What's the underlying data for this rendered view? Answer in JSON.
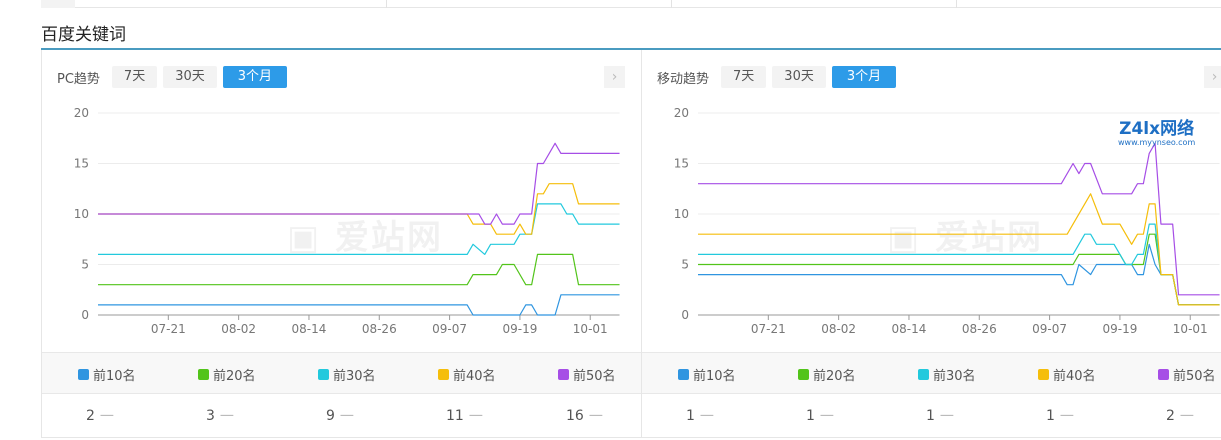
{
  "section_title": "百度关键词",
  "colors": {
    "accent": "#2d9be8",
    "rule": "#4a9bc0",
    "top10": "#2f95e0",
    "top20": "#52c41a",
    "top30": "#22c9dd",
    "top40": "#f5be0b",
    "top50": "#a64ee6"
  },
  "legend": [
    "前10名",
    "前20名",
    "前30名",
    "前40名",
    "前50名"
  ],
  "watermark": "爱站网",
  "overlay_logo": {
    "name": "Z4lx网络",
    "url": "www.myynseo.com"
  },
  "panels": [
    {
      "title": "PC趋势",
      "buttons": [
        "7天",
        "30天",
        "3个月"
      ],
      "active": 2,
      "next_icon": "chevron-right-icon",
      "values": [
        "2",
        "3",
        "9",
        "11",
        "16"
      ],
      "chart_data": {
        "type": "line",
        "x_ticks": [
          "07-21",
          "08-02",
          "08-14",
          "08-26",
          "09-07",
          "09-19",
          "10-01"
        ],
        "x_range": [
          "07-09",
          "10-06"
        ],
        "y_ticks": [
          0,
          5,
          10,
          15,
          20
        ],
        "ylim": [
          0,
          20
        ],
        "grid": true,
        "series": [
          {
            "name": "前10名",
            "points": [
              [
                "07-09",
                1
              ],
              [
                "09-10",
                1
              ],
              [
                "09-11",
                0
              ],
              [
                "09-19",
                0
              ],
              [
                "09-20",
                1
              ],
              [
                "09-21",
                1
              ],
              [
                "09-22",
                0
              ],
              [
                "09-25",
                0
              ],
              [
                "09-26",
                2
              ],
              [
                "10-06",
                2
              ]
            ]
          },
          {
            "name": "前20名",
            "points": [
              [
                "07-09",
                3
              ],
              [
                "09-10",
                3
              ],
              [
                "09-11",
                4
              ],
              [
                "09-15",
                4
              ],
              [
                "09-16",
                5
              ],
              [
                "09-18",
                5
              ],
              [
                "09-20",
                3
              ],
              [
                "09-21",
                3
              ],
              [
                "09-22",
                6
              ],
              [
                "09-28",
                6
              ],
              [
                "09-29",
                3
              ],
              [
                "10-06",
                3
              ]
            ]
          },
          {
            "name": "前30名",
            "points": [
              [
                "07-09",
                6
              ],
              [
                "09-10",
                6
              ],
              [
                "09-11",
                7
              ],
              [
                "09-13",
                6
              ],
              [
                "09-14",
                7
              ],
              [
                "09-18",
                7
              ],
              [
                "09-19",
                8
              ],
              [
                "09-21",
                8
              ],
              [
                "09-22",
                11
              ],
              [
                "09-26",
                11
              ],
              [
                "09-27",
                10
              ],
              [
                "09-28",
                10
              ],
              [
                "09-29",
                9
              ],
              [
                "10-06",
                9
              ]
            ]
          },
          {
            "name": "前40名",
            "points": [
              [
                "07-09",
                10
              ],
              [
                "09-10",
                10
              ],
              [
                "09-11",
                9
              ],
              [
                "09-14",
                9
              ],
              [
                "09-15",
                8
              ],
              [
                "09-18",
                8
              ],
              [
                "09-19",
                9
              ],
              [
                "09-20",
                8
              ],
              [
                "09-21",
                8
              ],
              [
                "09-22",
                12
              ],
              [
                "09-23",
                12
              ],
              [
                "09-24",
                13
              ],
              [
                "09-28",
                13
              ],
              [
                "09-29",
                11
              ],
              [
                "10-06",
                11
              ]
            ]
          },
          {
            "name": "前50名",
            "points": [
              [
                "07-09",
                10
              ],
              [
                "09-12",
                10
              ],
              [
                "09-13",
                9
              ],
              [
                "09-14",
                9
              ],
              [
                "09-15",
                10
              ],
              [
                "09-16",
                9
              ],
              [
                "09-18",
                9
              ],
              [
                "09-19",
                10
              ],
              [
                "09-21",
                10
              ],
              [
                "09-22",
                15
              ],
              [
                "09-23",
                15
              ],
              [
                "09-24",
                16
              ],
              [
                "09-25",
                17
              ],
              [
                "09-26",
                16
              ],
              [
                "10-06",
                16
              ]
            ]
          }
        ]
      }
    },
    {
      "title": "移动趋势",
      "buttons": [
        "7天",
        "30天",
        "3个月"
      ],
      "active": 2,
      "next_icon": "chevron-right-icon",
      "values": [
        "1",
        "1",
        "1",
        "1",
        "2"
      ],
      "chart_data": {
        "type": "line",
        "x_ticks": [
          "07-21",
          "08-02",
          "08-14",
          "08-26",
          "09-07",
          "09-19",
          "10-01"
        ],
        "x_range": [
          "07-09",
          "10-06"
        ],
        "y_ticks": [
          0,
          5,
          10,
          15,
          20
        ],
        "ylim": [
          0,
          20
        ],
        "grid": true,
        "series": [
          {
            "name": "前10名",
            "points": [
              [
                "07-09",
                4
              ],
              [
                "09-09",
                4
              ],
              [
                "09-10",
                3
              ],
              [
                "09-11",
                3
              ],
              [
                "09-12",
                5
              ],
              [
                "09-14",
                4
              ],
              [
                "09-15",
                5
              ],
              [
                "09-21",
                5
              ],
              [
                "09-22",
                4
              ],
              [
                "09-23",
                4
              ],
              [
                "09-24",
                7
              ],
              [
                "09-25",
                5
              ],
              [
                "09-26",
                4
              ],
              [
                "09-28",
                4
              ],
              [
                "09-29",
                1
              ],
              [
                "10-06",
                1
              ]
            ]
          },
          {
            "name": "前20名",
            "points": [
              [
                "07-09",
                5
              ],
              [
                "09-11",
                5
              ],
              [
                "09-12",
                6
              ],
              [
                "09-19",
                6
              ],
              [
                "09-20",
                5
              ],
              [
                "09-23",
                5
              ],
              [
                "09-24",
                8
              ],
              [
                "09-25",
                8
              ],
              [
                "09-26",
                4
              ],
              [
                "09-28",
                4
              ],
              [
                "09-29",
                1
              ],
              [
                "10-06",
                1
              ]
            ]
          },
          {
            "name": "前30名",
            "points": [
              [
                "07-09",
                6
              ],
              [
                "09-11",
                6
              ],
              [
                "09-13",
                8
              ],
              [
                "09-14",
                8
              ],
              [
                "09-15",
                7
              ],
              [
                "09-18",
                7
              ],
              [
                "09-20",
                5
              ],
              [
                "09-21",
                5
              ],
              [
                "09-22",
                6
              ],
              [
                "09-23",
                6
              ],
              [
                "09-24",
                9
              ],
              [
                "09-25",
                9
              ],
              [
                "09-26",
                4
              ],
              [
                "09-28",
                4
              ],
              [
                "09-29",
                1
              ],
              [
                "10-06",
                1
              ]
            ]
          },
          {
            "name": "前40名",
            "points": [
              [
                "07-09",
                8
              ],
              [
                "09-10",
                8
              ],
              [
                "09-14",
                12
              ],
              [
                "09-16",
                9
              ],
              [
                "09-19",
                9
              ],
              [
                "09-21",
                7
              ],
              [
                "09-22",
                8
              ],
              [
                "09-23",
                8
              ],
              [
                "09-24",
                11
              ],
              [
                "09-25",
                11
              ],
              [
                "09-26",
                4
              ],
              [
                "09-28",
                4
              ],
              [
                "09-29",
                1
              ],
              [
                "10-06",
                1
              ]
            ]
          },
          {
            "name": "前50名",
            "points": [
              [
                "07-09",
                13
              ],
              [
                "09-09",
                13
              ],
              [
                "09-11",
                15
              ],
              [
                "09-12",
                14
              ],
              [
                "09-13",
                15
              ],
              [
                "09-14",
                15
              ],
              [
                "09-16",
                12
              ],
              [
                "09-21",
                12
              ],
              [
                "09-22",
                13
              ],
              [
                "09-23",
                13
              ],
              [
                "09-24",
                16
              ],
              [
                "09-25",
                17
              ],
              [
                "09-26",
                9
              ],
              [
                "09-28",
                9
              ],
              [
                "09-29",
                2
              ],
              [
                "10-06",
                2
              ]
            ]
          }
        ]
      }
    }
  ]
}
